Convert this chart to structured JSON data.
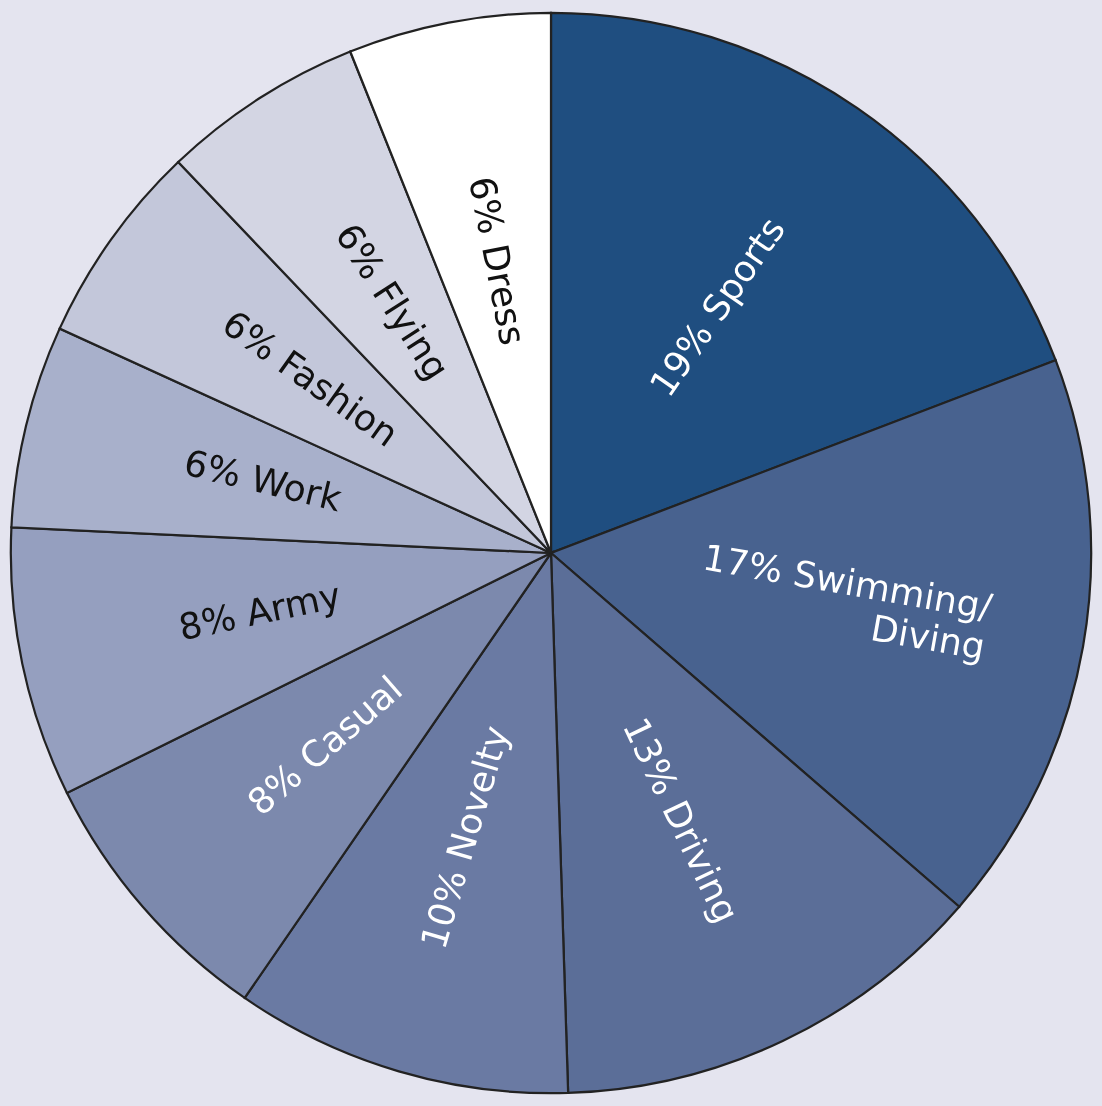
{
  "chart_data": {
    "type": "pie",
    "categories": [
      "Sports",
      "Swimming/\nDiving",
      "Driving",
      "Novelty",
      "Casual",
      "Army",
      "Work",
      "Fashion",
      "Flying",
      "Dress"
    ],
    "values": [
      19,
      17,
      13,
      10,
      8,
      8,
      6,
      6,
      6,
      6
    ],
    "value_labels": [
      "19%",
      "17%",
      "13%",
      "10%",
      "8%",
      "8%",
      "6%",
      "6%",
      "6%",
      "6%"
    ],
    "colors": [
      "#1f4e80",
      "#48628f",
      "#5b6e98",
      "#6a7aa3",
      "#7c89ad",
      "#959fbf",
      "#a8b0cb",
      "#c3c7da",
      "#d3d5e3",
      "#ffffff"
    ],
    "legend": false
  }
}
